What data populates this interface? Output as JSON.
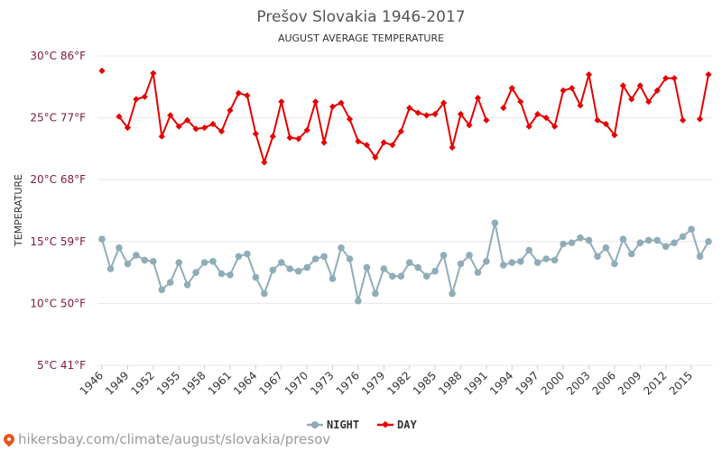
{
  "chart_data": {
    "type": "line",
    "title": "Prešov Slovakia 1946-2017",
    "subtitle": "AUGUST AVERAGE TEMPERATURE",
    "ylabel": "TEMPERATURE",
    "ylim": [
      5,
      30
    ],
    "y_ticks": [
      {
        "value": 30,
        "label": "30°C 86°F"
      },
      {
        "value": 25,
        "label": "25°C 77°F"
      },
      {
        "value": 20,
        "label": "20°C 68°F"
      },
      {
        "value": 15,
        "label": "15°C 59°F"
      },
      {
        "value": 10,
        "label": "10°C 50°F"
      },
      {
        "value": 5,
        "label": "5°C 41°F"
      }
    ],
    "x_tick_labels": [
      "1946",
      "1949",
      "1952",
      "1955",
      "1958",
      "1961",
      "1964",
      "1967",
      "1970",
      "1973",
      "1976",
      "1979",
      "1982",
      "1985",
      "1988",
      "1991",
      "1994",
      "1997",
      "2000",
      "2003",
      "2006",
      "2009",
      "2012",
      "2015"
    ],
    "x": [
      1946,
      1947,
      1948,
      1949,
      1950,
      1951,
      1952,
      1953,
      1954,
      1955,
      1956,
      1957,
      1958,
      1959,
      1960,
      1961,
      1962,
      1963,
      1964,
      1965,
      1966,
      1967,
      1968,
      1969,
      1970,
      1971,
      1972,
      1973,
      1974,
      1975,
      1976,
      1977,
      1978,
      1979,
      1980,
      1981,
      1982,
      1983,
      1984,
      1985,
      1986,
      1987,
      1988,
      1989,
      1990,
      1991,
      1992,
      1993,
      1994,
      1995,
      1996,
      1997,
      1998,
      1999,
      2000,
      2001,
      2002,
      2003,
      2004,
      2005,
      2006,
      2007,
      2008,
      2009,
      2010,
      2011,
      2012,
      2013,
      2014,
      2015,
      2016,
      2017
    ],
    "grid": true,
    "legend_position": "bottom",
    "series": [
      {
        "name": "NIGHT",
        "color": "#8fadb8",
        "marker": "circle",
        "values": [
          15.2,
          12.8,
          14.5,
          13.2,
          13.9,
          13.5,
          13.4,
          11.1,
          11.7,
          13.3,
          11.5,
          12.5,
          13.3,
          13.4,
          12.4,
          12.3,
          13.8,
          14.0,
          12.1,
          10.8,
          12.7,
          13.3,
          12.8,
          12.6,
          12.9,
          13.6,
          13.8,
          12.0,
          14.5,
          13.6,
          10.2,
          12.9,
          10.8,
          12.8,
          12.2,
          12.2,
          13.3,
          12.9,
          12.2,
          12.6,
          13.9,
          10.8,
          13.2,
          13.9,
          12.5,
          13.4,
          16.5,
          13.1,
          13.3,
          13.4,
          14.3,
          13.3,
          13.6,
          13.5,
          14.8,
          14.9,
          15.3,
          15.1,
          13.8,
          14.5,
          13.2,
          15.2,
          14.0,
          14.9,
          15.1,
          15.1,
          14.6,
          14.9,
          15.4,
          16.0,
          13.8,
          15.0
        ]
      },
      {
        "name": "DAY",
        "color": "#e30000",
        "marker": "diamond",
        "values": [
          28.8,
          null,
          25.1,
          24.2,
          26.5,
          26.7,
          28.6,
          23.5,
          25.2,
          24.3,
          24.8,
          24.1,
          24.2,
          24.5,
          23.9,
          25.6,
          27.0,
          26.8,
          23.7,
          21.4,
          23.5,
          26.3,
          23.4,
          23.3,
          24.0,
          26.3,
          23.0,
          25.9,
          26.2,
          24.9,
          23.1,
          22.8,
          21.8,
          23.0,
          22.8,
          23.9,
          25.8,
          25.4,
          25.2,
          25.3,
          26.2,
          22.6,
          25.3,
          24.4,
          26.6,
          24.8,
          null,
          25.8,
          27.4,
          26.3,
          24.3,
          25.3,
          25.0,
          24.3,
          27.2,
          27.4,
          26.0,
          28.5,
          24.8,
          24.5,
          23.6,
          27.6,
          26.5,
          27.6,
          26.3,
          27.2,
          28.2,
          28.2,
          24.8,
          null,
          24.9,
          28.5
        ]
      }
    ]
  },
  "footer": {
    "url": "hikersbay.com/climate/august/slovakia/presov",
    "pin_icon": "map-pin-icon"
  }
}
